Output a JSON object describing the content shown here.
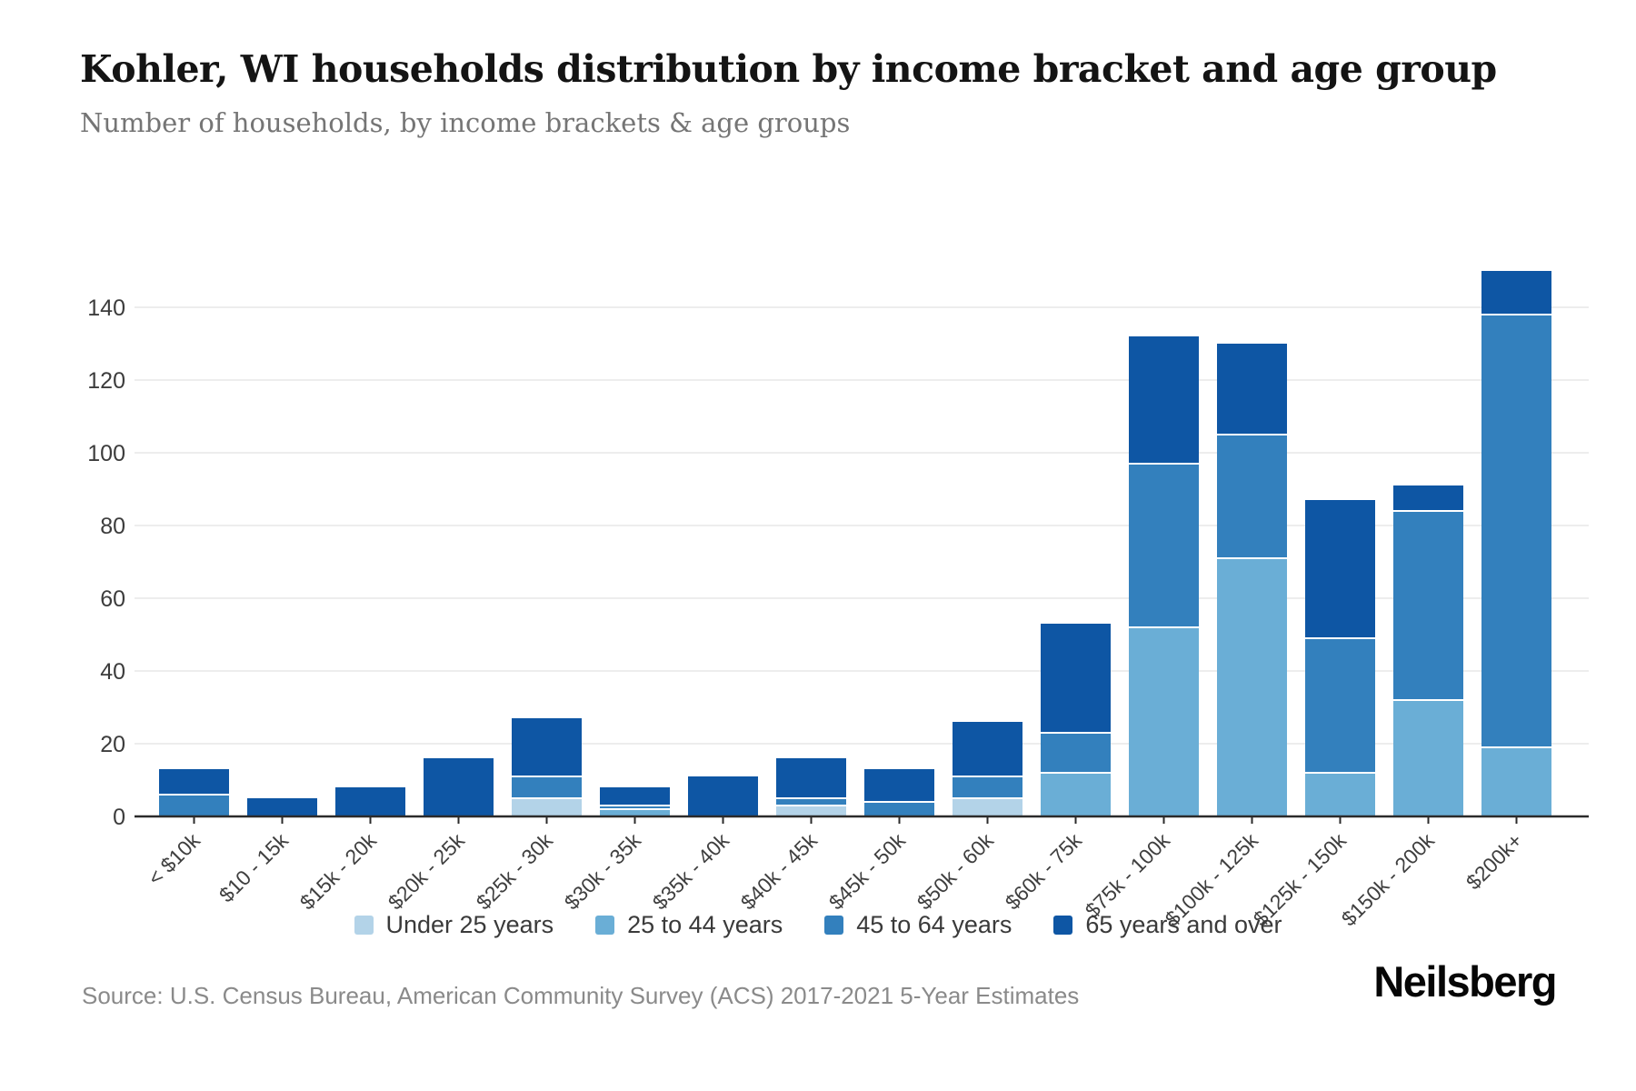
{
  "header": {
    "title": "Kohler, WI households distribution by income bracket and age group",
    "subtitle": "Number of households, by income brackets & age groups"
  },
  "footer": {
    "source": "Source: U.S. Census Bureau, American Community Survey (ACS) 2017-2021 5-Year Estimates",
    "brand": "Neilsberg"
  },
  "chart_data": {
    "type": "bar",
    "stacked": true,
    "title": "Kohler, WI households distribution by income bracket and age group",
    "subtitle": "Number of households, by income brackets & age groups",
    "xlabel": "",
    "ylabel": "",
    "ylim": [
      0,
      150
    ],
    "yticks": [
      0,
      20,
      40,
      60,
      80,
      100,
      120,
      140
    ],
    "grid": true,
    "legend_position": "bottom",
    "categories": [
      "< $10k",
      "$10 - 15k",
      "$15k - 20k",
      "$20k - 25k",
      "$25k - 30k",
      "$30k - 35k",
      "$35k - 40k",
      "$40k - 45k",
      "$45k - 50k",
      "$50k - 60k",
      "$60k - 75k",
      "$75k - 100k",
      "$100k - 125k",
      "$125k - 150k",
      "$150k - 200k",
      "$200k+"
    ],
    "series": [
      {
        "name": "Under 25 years",
        "color": "#b3d3e8",
        "values": [
          0,
          0,
          0,
          0,
          5,
          0,
          0,
          3,
          0,
          5,
          0,
          0,
          0,
          0,
          0,
          0
        ]
      },
      {
        "name": "25 to 44 years",
        "color": "#6aaed6",
        "values": [
          0,
          0,
          0,
          0,
          0,
          2,
          0,
          0,
          0,
          0,
          12,
          52,
          71,
          12,
          32,
          19
        ]
      },
      {
        "name": "45 to 64 years",
        "color": "#3380bd",
        "values": [
          6,
          0,
          0,
          0,
          6,
          1,
          0,
          2,
          4,
          6,
          11,
          45,
          34,
          37,
          52,
          119
        ]
      },
      {
        "name": "65 years and over",
        "color": "#0e56a4",
        "values": [
          7,
          5,
          8,
          16,
          16,
          5,
          11,
          11,
          9,
          15,
          30,
          35,
          25,
          38,
          7,
          12
        ]
      }
    ],
    "totals": [
      13,
      5,
      8,
      16,
      27,
      8,
      11,
      16,
      13,
      26,
      53,
      132,
      130,
      87,
      91,
      150
    ]
  },
  "layout_colors": {
    "gridline": "#ededed",
    "axis_line": "#2b2b2b",
    "tick_label": "#3c3c3c",
    "x_label": "#3f3f3f",
    "separator": "#ffffff"
  }
}
